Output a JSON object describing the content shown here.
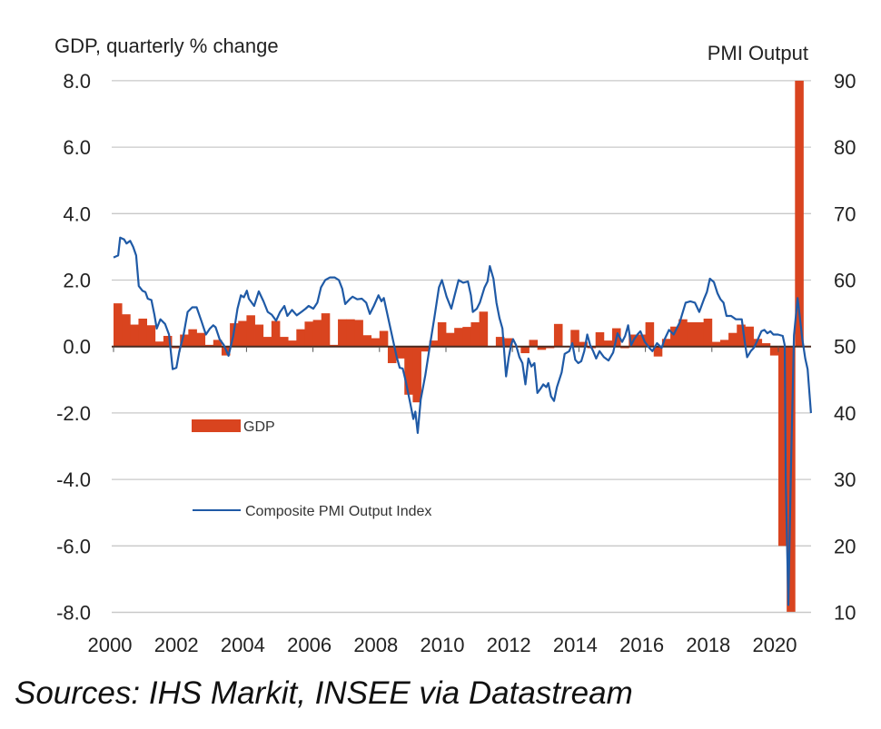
{
  "chart_data": {
    "type": "bar+line",
    "left_axis_title": "GDP, quarterly % change",
    "right_axis_title": "PMI Output",
    "left_ylim": [
      -8.0,
      8.0
    ],
    "right_ylim": [
      10,
      90
    ],
    "left_ticks": [
      "8.0",
      "6.0",
      "4.0",
      "2.0",
      "0.0",
      "-2.0",
      "-4.0",
      "-6.0",
      "-8.0"
    ],
    "right_ticks": [
      "90",
      "80",
      "70",
      "60",
      "50",
      "40",
      "30",
      "20",
      "10"
    ],
    "x_ticks": [
      "2000",
      "2002",
      "2004",
      "2006",
      "2008",
      "2010",
      "2012",
      "2014",
      "2016",
      "2018",
      "2020"
    ],
    "xlim": [
      2000,
      2021
    ],
    "grid": true,
    "colors": {
      "gdp": "#d9441f",
      "pmi": "#1f5aa6",
      "grid": "#c8c8c8",
      "zero_line": "#4a2a20"
    },
    "series": [
      {
        "name": "GDP",
        "type": "bar",
        "axis": "left",
        "start_quarter": "2000 Q1",
        "values": [
          1.3,
          0.97,
          0.66,
          0.84,
          0.64,
          0.15,
          0.32,
          -0.05,
          0.36,
          0.52,
          0.41,
          0.05,
          0.2,
          -0.27,
          0.7,
          0.77,
          0.94,
          0.66,
          0.29,
          0.77,
          0.29,
          0.18,
          0.52,
          0.75,
          0.8,
          1.0,
          0.05,
          0.82,
          0.82,
          0.8,
          0.34,
          0.25,
          0.47,
          -0.5,
          -0.36,
          -1.45,
          -1.68,
          -0.15,
          0.18,
          0.73,
          0.41,
          0.56,
          0.59,
          0.73,
          1.05,
          0.0,
          0.29,
          0.25,
          0.0,
          -0.2,
          0.2,
          -0.1,
          -0.05,
          0.68,
          0.0,
          0.5,
          0.14,
          -0.05,
          0.43,
          0.18,
          0.55,
          -0.05,
          0.36,
          0.36,
          0.73,
          -0.3,
          0.23,
          0.6,
          0.82,
          0.73,
          0.73,
          0.84,
          0.14,
          0.2,
          0.41,
          0.66,
          0.6,
          0.23,
          0.1,
          -0.27,
          -6.0,
          -8.0,
          8.0
        ]
      },
      {
        "name": "Composite PMI Output Index",
        "type": "line",
        "axis": "right",
        "x": [
          2000.0,
          2000.14,
          2000.2,
          2000.32,
          2000.39,
          2000.5,
          2000.59,
          2000.68,
          2000.76,
          2000.87,
          2000.96,
          2001.03,
          2001.14,
          2001.23,
          2001.3,
          2001.41,
          2001.55,
          2001.67,
          2001.78,
          2001.89,
          2001.98,
          2002.1,
          2002.23,
          2002.37,
          2002.5,
          2002.64,
          2002.78,
          2002.9,
          2003.0,
          2003.07,
          2003.19,
          2003.32,
          2003.46,
          2003.6,
          2003.73,
          2003.83,
          2003.92,
          2004.01,
          2004.07,
          2004.23,
          2004.37,
          2004.51,
          2004.64,
          2004.76,
          2004.89,
          2005.01,
          2005.14,
          2005.23,
          2005.37,
          2005.51,
          2005.65,
          2005.78,
          2005.87,
          2006.01,
          2006.13,
          2006.24,
          2006.37,
          2006.51,
          2006.65,
          2006.78,
          2006.88,
          2006.97,
          2007.1,
          2007.19,
          2007.33,
          2007.47,
          2007.6,
          2007.71,
          2007.83,
          2007.97,
          2008.06,
          2008.13,
          2008.24,
          2008.38,
          2008.52,
          2008.61,
          2008.7,
          2008.79,
          2008.92,
          2009.02,
          2009.08,
          2009.15,
          2009.24,
          2009.38,
          2009.52,
          2009.65,
          2009.79,
          2009.88,
          2010.02,
          2010.16,
          2010.25,
          2010.38,
          2010.52,
          2010.66,
          2010.75,
          2010.81,
          2010.93,
          2011.02,
          2011.16,
          2011.25,
          2011.32,
          2011.43,
          2011.52,
          2011.61,
          2011.7,
          2011.81,
          2011.89,
          2011.96,
          2012.02,
          2012.11,
          2012.21,
          2012.3,
          2012.39,
          2012.48,
          2012.57,
          2012.66,
          2012.75,
          2012.84,
          2012.93,
          2013.02,
          2013.08,
          2013.16,
          2013.25,
          2013.34,
          2013.48,
          2013.57,
          2013.71,
          2013.8,
          2013.89,
          2013.98,
          2014.07,
          2014.16,
          2014.25,
          2014.34,
          2014.43,
          2014.52,
          2014.62,
          2014.75,
          2014.89,
          2015.03,
          2015.16,
          2015.3,
          2015.39,
          2015.48,
          2015.57,
          2015.66,
          2015.76,
          2015.85,
          2015.98,
          2016.12,
          2016.21,
          2016.35,
          2016.49,
          2016.58,
          2016.71,
          2016.85,
          2017.03,
          2017.21,
          2017.35,
          2017.49,
          2017.62,
          2017.76,
          2017.85,
          2017.94,
          2018.06,
          2018.17,
          2018.26,
          2018.35,
          2018.44,
          2018.58,
          2018.72,
          2018.9,
          2018.99,
          2019.06,
          2019.17,
          2019.26,
          2019.35,
          2019.49,
          2019.58,
          2019.67,
          2019.76,
          2019.85,
          2019.99,
          2020.13,
          2020.19,
          2020.22,
          2020.3,
          2020.38,
          2020.47,
          2020.58,
          2020.72,
          2020.81,
          2020.88,
          2020.98
        ],
        "values": [
          63.4,
          63.7,
          66.4,
          66.1,
          65.5,
          65.9,
          65.0,
          63.7,
          59.1,
          58.4,
          58.2,
          57.2,
          57.0,
          54.8,
          52.7,
          54.1,
          53.4,
          51.8,
          46.6,
          46.8,
          49.3,
          51.6,
          55.2,
          55.9,
          55.9,
          53.9,
          51.8,
          52.7,
          53.2,
          52.9,
          51.1,
          50.2,
          48.6,
          51.6,
          55.7,
          57.7,
          57.4,
          58.4,
          57.2,
          56.1,
          58.3,
          56.8,
          55.2,
          54.8,
          53.9,
          55.2,
          56.1,
          54.6,
          55.5,
          54.7,
          55.2,
          55.7,
          56.1,
          55.7,
          56.6,
          58.9,
          60.0,
          60.4,
          60.4,
          60.0,
          58.7,
          56.4,
          57.1,
          57.5,
          57.1,
          57.2,
          56.6,
          54.9,
          56.1,
          57.7,
          56.8,
          57.3,
          54.8,
          51.6,
          48.4,
          46.8,
          46.7,
          44.8,
          41.6,
          39.1,
          40.2,
          37.0,
          42.0,
          45.7,
          50.2,
          54.3,
          58.9,
          60.0,
          57.5,
          55.7,
          57.5,
          60.0,
          59.6,
          59.8,
          57.7,
          55.2,
          55.7,
          56.6,
          58.9,
          59.8,
          62.1,
          60.2,
          56.6,
          54.3,
          52.7,
          45.5,
          48.4,
          50.2,
          51.1,
          50.2,
          48.4,
          47.5,
          44.3,
          48.2,
          47.0,
          47.5,
          43.0,
          43.6,
          44.3,
          43.9,
          44.5,
          42.5,
          41.8,
          43.9,
          46.1,
          48.9,
          49.3,
          50.5,
          48.0,
          47.5,
          47.8,
          49.3,
          51.8,
          50.2,
          49.3,
          48.2,
          49.3,
          48.4,
          47.9,
          49.1,
          52.0,
          50.7,
          51.6,
          53.2,
          50.2,
          51.1,
          51.8,
          52.3,
          50.7,
          49.8,
          49.3,
          50.5,
          49.8,
          51.1,
          52.5,
          51.8,
          53.6,
          56.6,
          56.8,
          56.6,
          55.2,
          57.1,
          58.2,
          60.2,
          59.7,
          58.0,
          57.1,
          56.6,
          54.6,
          54.6,
          54.1,
          54.1,
          50.7,
          48.4,
          49.3,
          49.8,
          50.7,
          52.3,
          52.5,
          52.0,
          52.3,
          51.8,
          51.8,
          51.6,
          50.2,
          30.0,
          11.1,
          32.0,
          51.7,
          57.3,
          51.1,
          48.2,
          46.6,
          40.0
        ]
      }
    ],
    "legend": {
      "gdp_label": "GDP",
      "pmi_label": "Composite PMI Output Index",
      "placement": "inside-left"
    },
    "source": "Sources: IHS Markit, INSEE via Datastream"
  }
}
